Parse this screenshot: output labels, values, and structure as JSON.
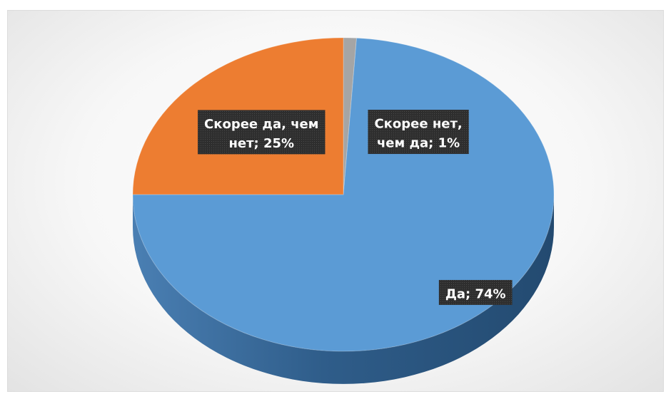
{
  "chart_data": {
    "type": "pie",
    "style": "3d",
    "title": "",
    "slices": [
      {
        "label": "Да",
        "value": 74,
        "display": "Да; 74%",
        "color": "#5b9bd5"
      },
      {
        "label": "Скорее да, чем нет",
        "value": 25,
        "display": "Скорее да, чем нет; 25%",
        "color": "#ed7d31"
      },
      {
        "label": "Скорее нет, чем да",
        "value": 1,
        "display": "Скорее нет, чем да; 1%",
        "color": "#a5a5a5"
      }
    ],
    "data_labels": [
      {
        "lines": [
          "Да; 74%"
        ]
      },
      {
        "lines": [
          "Скорее да, чем",
          "нет; 25%"
        ]
      },
      {
        "lines": [
          "Скорее нет,",
          "чем да; 1%"
        ]
      }
    ],
    "legend": "none",
    "label_background": "#333333"
  }
}
